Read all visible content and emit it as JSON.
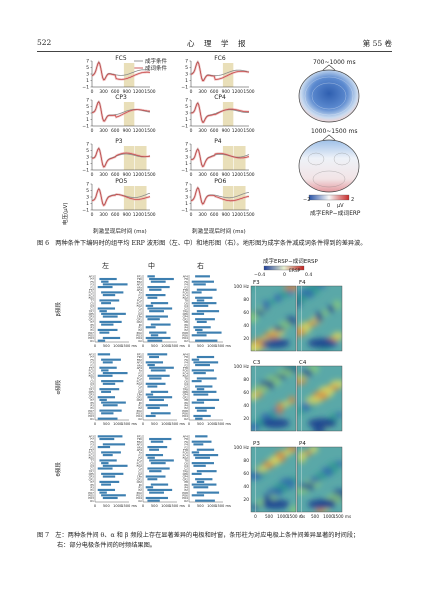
{
  "header": {
    "page": "522",
    "journal": "心　理　学　报",
    "volume": "第 55 卷"
  },
  "fig6": {
    "legend": [
      "成字条件",
      "成词条件"
    ],
    "panels": [
      {
        "label": "FC5"
      },
      {
        "label": "FC6"
      },
      {
        "label": "CP3"
      },
      {
        "label": "CP4"
      },
      {
        "label": "P3"
      },
      {
        "label": "P4"
      },
      {
        "label": "PO5"
      },
      {
        "label": "PO6"
      }
    ],
    "yticks": [
      "7",
      "5",
      "3",
      "1",
      "−1"
    ],
    "xticks": [
      "0",
      "300",
      "600",
      "900",
      "1200",
      "1500"
    ],
    "ylabel": "电压(μV)",
    "xlabel": "刺激呈现后时间 (ms)",
    "topo": {
      "title1": "700~1000 ms",
      "title2": "1000~1500 ms",
      "scale": [
        "−2",
        "0",
        "2"
      ],
      "unit": "μV",
      "label": "成字ERP−成词ERP"
    },
    "caption": "图 6　两种条件下编码时的组平均 ERP 波形图（左、中）和地形图（右）。地形图为成字条件减成词条件得到的差异波。"
  },
  "fig7": {
    "col_titles": [
      "左",
      "中",
      "右"
    ],
    "rows": [
      {
        "label": "β频段",
        "left": [
          "AF3",
          "F7",
          "F5",
          "F3",
          "F1",
          "FT7",
          "FC5",
          "FC3",
          "FC1",
          "T7",
          "C5",
          "C3",
          "C1",
          "TP7",
          "CP5",
          "CP3",
          "CP1",
          "P7",
          "P5",
          "P3",
          "P1",
          "PO7",
          "PO5",
          "PO3",
          "O1"
        ],
        "mid": [
          "FP1",
          "FPz",
          "FP2",
          "AF3",
          "AFz",
          "AF4",
          "Fz",
          "F1",
          "F2",
          "FCz",
          "FC1",
          "FC2",
          "Cz",
          "C1",
          "C2",
          "CPz",
          "CP1",
          "CP2",
          "Pz",
          "P1",
          "P2",
          "POz",
          "PO3",
          "PO4",
          "Oz"
        ],
        "right": [
          "AF4",
          "F8",
          "F6",
          "F4",
          "F2",
          "FT8",
          "FC6",
          "FC4",
          "FC2",
          "T8",
          "C6",
          "C4",
          "C2",
          "TP8",
          "CP6",
          "CP4",
          "CP2",
          "P8",
          "P6",
          "P4",
          "P2",
          "PO8",
          "PO6",
          "PO4",
          "O2"
        ]
      },
      {
        "label": "α频段",
        "left": [
          "AF3",
          "F7",
          "F5",
          "F3",
          "F1",
          "FT7",
          "FC5",
          "FC3",
          "FC1",
          "T7",
          "C5",
          "C3",
          "C1",
          "TP7",
          "CP5",
          "CP3",
          "CP1",
          "P7",
          "P5",
          "P3",
          "P1",
          "PO7",
          "PO5",
          "PO3",
          "O1"
        ],
        "mid": [
          "FP1",
          "FPz",
          "FP2",
          "AF3",
          "AFz",
          "AF4",
          "Fz",
          "F1",
          "F2",
          "FCz",
          "FC1",
          "FC2",
          "Cz",
          "C1",
          "C2",
          "CPz",
          "CP1",
          "CP2",
          "Pz",
          "P1",
          "P2",
          "POz",
          "PO3",
          "PO4",
          "Oz"
        ],
        "right": [
          "AF4",
          "F8",
          "F6",
          "F4",
          "F2",
          "FT8",
          "FC6",
          "FC4",
          "FC2",
          "T8",
          "C6",
          "C4",
          "C2",
          "TP8",
          "CP6",
          "CP4",
          "CP2",
          "P8",
          "P6",
          "P4",
          "P2",
          "PO8",
          "PO6",
          "PO4",
          "O2"
        ]
      },
      {
        "label": "θ频段",
        "left": [
          "AF3",
          "F7",
          "F5",
          "F3",
          "F1",
          "FT7",
          "FC5",
          "FC3",
          "FC1",
          "T7",
          "C5",
          "C3",
          "C1",
          "TP7",
          "CP5",
          "CP3",
          "CP1",
          "P7",
          "P5",
          "P3",
          "P1",
          "PO7",
          "PO5",
          "PO3",
          "O1"
        ],
        "mid": [
          "FP1",
          "FPz",
          "FP2",
          "AF3",
          "AFz",
          "AF4",
          "Fz",
          "F1",
          "F2",
          "FCz",
          "FC1",
          "FC2",
          "Cz",
          "C1",
          "C2",
          "CPz",
          "CP1",
          "CP2",
          "Pz",
          "P1",
          "P2",
          "POz",
          "PO3",
          "PO4",
          "Oz"
        ],
        "right": [
          "AF4",
          "F8",
          "F6",
          "F4",
          "F2",
          "FT8",
          "FC6",
          "FC4",
          "FC2",
          "T8",
          "C6",
          "C4",
          "C2",
          "TP8",
          "CP6",
          "CP4",
          "CP2",
          "P8",
          "P6",
          "P4",
          "P2",
          "PO8",
          "PO6",
          "PO4",
          "O2"
        ]
      }
    ],
    "bar_xticks": [
      "0",
      "500",
      "1000",
      "1500 ms"
    ],
    "spec": {
      "legend_title": "成字ERSP−成词ERSP",
      "legend_ticks": [
        "−0.4",
        "0",
        "0.4"
      ],
      "legend_unit": "ERSP",
      "panels": [
        "F3",
        "F4",
        "C3",
        "C4",
        "P3",
        "P4"
      ],
      "yticks": [
        "100 Hz",
        "80",
        "60",
        "40",
        "20"
      ],
      "xticks": [
        "0",
        "500",
        "1000",
        "1500 ms"
      ]
    },
    "caption_lines": [
      "图 7　左：两种条件间 θ、α 和 β 频段上存在显著差异的电极和时窗，条形柱为对应电极上条件间差异显著的时间段；",
      "右：部分电极条件间的时频结果图。"
    ]
  }
}
